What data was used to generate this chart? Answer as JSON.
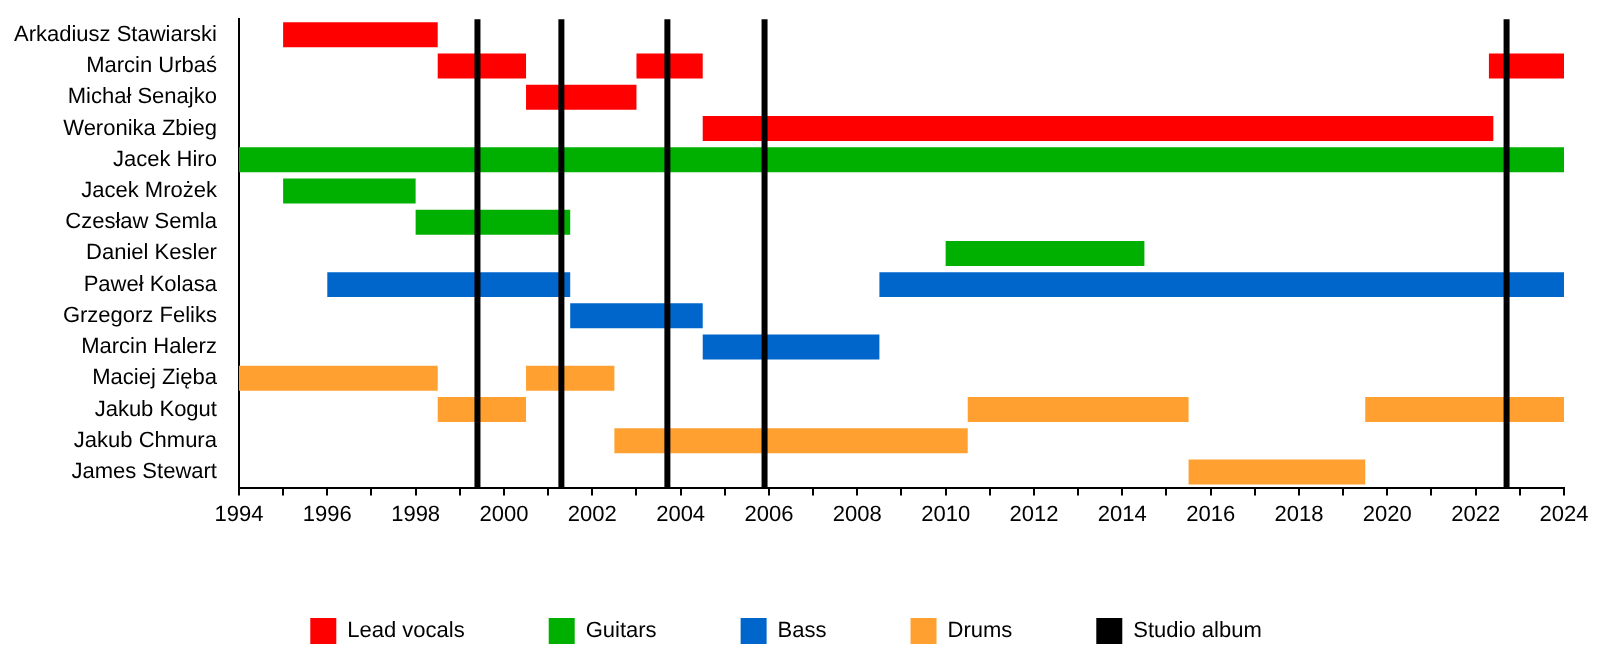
{
  "chart_data": {
    "type": "bar",
    "orientation": "horizontal",
    "legend": "bottom",
    "grid": false,
    "categories": [
      "Arkadiusz Stawiarski",
      "Marcin Urbaś",
      "Michał Senajko",
      "Weronika Zbieg",
      "Jacek Hiro",
      "Jacek Mrożek",
      "Czesław Semla",
      "Daniel Kesler",
      "Paweł Kolasa",
      "Grzegorz Feliks",
      "Marcin Halerz",
      "Maciej Zięba",
      "Jakub Kogut",
      "Jakub Chmura",
      "James Stewart"
    ],
    "xlim": [
      1994,
      2024
    ],
    "xticks": [
      1994,
      {
        "value": 1995,
        "label": null
      },
      1996,
      {
        "value": 1997,
        "label": null
      },
      1998,
      {
        "value": 1999,
        "label": null
      },
      2000,
      {
        "value": 2001,
        "label": null
      },
      2002,
      {
        "value": 2003,
        "label": null
      },
      2004,
      {
        "value": 2005,
        "label": null
      },
      2006,
      {
        "value": 2007,
        "label": null
      },
      2008,
      {
        "value": 2009,
        "label": null
      },
      2010,
      {
        "value": 2011,
        "label": null
      },
      2012,
      {
        "value": 2013,
        "label": null
      },
      2014,
      {
        "value": 2015,
        "label": null
      },
      2016,
      {
        "value": 2017,
        "label": null
      },
      2018,
      {
        "value": 2019,
        "label": null
      },
      2020,
      {
        "value": 2021,
        "label": null
      },
      2022,
      {
        "value": 2023,
        "label": null
      },
      2024
    ],
    "series": [
      {
        "name": "Lead vocals",
        "color": "#ff0000",
        "base": [
          1995,
          1998.5,
          2000.5,
          2004.5,
          null,
          null,
          null,
          null,
          null,
          null,
          null,
          null,
          null,
          null,
          null
        ],
        "values": [
          3.5,
          2,
          2.5,
          17.9,
          null,
          null,
          null,
          null,
          null,
          null,
          null,
          null,
          null,
          null,
          null
        ]
      },
      {
        "color": "#ff0000",
        "base": [
          null,
          2003,
          null,
          null,
          null,
          null,
          null,
          null,
          null,
          null,
          null,
          null,
          null,
          null,
          null
        ],
        "values": [
          null,
          1.5,
          null,
          null,
          null,
          null,
          null,
          null,
          null,
          null,
          null,
          null,
          null,
          null,
          null
        ]
      },
      {
        "color": "#ff0000",
        "base": [
          null,
          2022.3,
          null,
          null,
          null,
          null,
          null,
          null,
          null,
          null,
          null,
          null,
          null,
          null,
          null
        ],
        "values": [
          null,
          1.7,
          null,
          null,
          null,
          null,
          null,
          null,
          null,
          null,
          null,
          null,
          null,
          null,
          null
        ]
      },
      {
        "name": "Guitars",
        "color": "#00b000",
        "base": [
          null,
          null,
          null,
          null,
          1994,
          1995,
          1998,
          2010,
          null,
          null,
          null,
          null,
          null,
          null,
          null
        ],
        "values": [
          null,
          null,
          null,
          null,
          30,
          3,
          3.5,
          4.5,
          null,
          null,
          null,
          null,
          null,
          null,
          null
        ]
      },
      {
        "name": "Bass",
        "color": "#0066cc",
        "base": [
          null,
          null,
          null,
          null,
          null,
          null,
          null,
          null,
          1996,
          2001.5,
          2004.5,
          null,
          null,
          null,
          null
        ],
        "values": [
          null,
          null,
          null,
          null,
          null,
          null,
          null,
          null,
          5.5,
          3,
          4,
          null,
          null,
          null,
          null
        ]
      },
      {
        "color": "#0066cc",
        "base": [
          null,
          null,
          null,
          null,
          null,
          null,
          null,
          null,
          2008.5,
          null,
          null,
          null,
          null,
          null,
          null
        ],
        "values": [
          null,
          null,
          null,
          null,
          null,
          null,
          null,
          null,
          15.5,
          null,
          null,
          null,
          null,
          null,
          null
        ]
      },
      {
        "name": "Drums",
        "color": "#ffa030",
        "base": [
          null,
          null,
          null,
          null,
          null,
          null,
          null,
          null,
          null,
          null,
          null,
          1994,
          1998.5,
          2002.5,
          2015.5
        ],
        "values": [
          null,
          null,
          null,
          null,
          null,
          null,
          null,
          null,
          null,
          null,
          null,
          4.5,
          2,
          8,
          4
        ]
      },
      {
        "color": "#ffa030",
        "base": [
          null,
          null,
          null,
          null,
          null,
          null,
          null,
          null,
          null,
          null,
          null,
          2000.5,
          2010.5,
          null,
          null
        ],
        "values": [
          null,
          null,
          null,
          null,
          null,
          null,
          null,
          null,
          null,
          null,
          null,
          2,
          5,
          null,
          null
        ]
      },
      {
        "color": "#ffa030",
        "base": [
          null,
          null,
          null,
          null,
          null,
          null,
          null,
          null,
          null,
          null,
          null,
          null,
          2019.5,
          null,
          null
        ],
        "values": [
          null,
          null,
          null,
          null,
          null,
          null,
          null,
          null,
          null,
          null,
          null,
          null,
          4.5,
          null,
          null
        ]
      }
    ],
    "ref_lines": [
      {
        "axis": "x",
        "value": 1999.4,
        "label": "Studio album",
        "color": "#000000"
      },
      {
        "axis": "x",
        "value": 2001.3,
        "color": "#000000"
      },
      {
        "axis": "x",
        "value": 2003.7,
        "color": "#000000"
      },
      {
        "axis": "x",
        "value": 2005.9,
        "color": "#000000"
      },
      {
        "axis": "x",
        "value": 2022.7,
        "color": "#000000"
      }
    ]
  }
}
